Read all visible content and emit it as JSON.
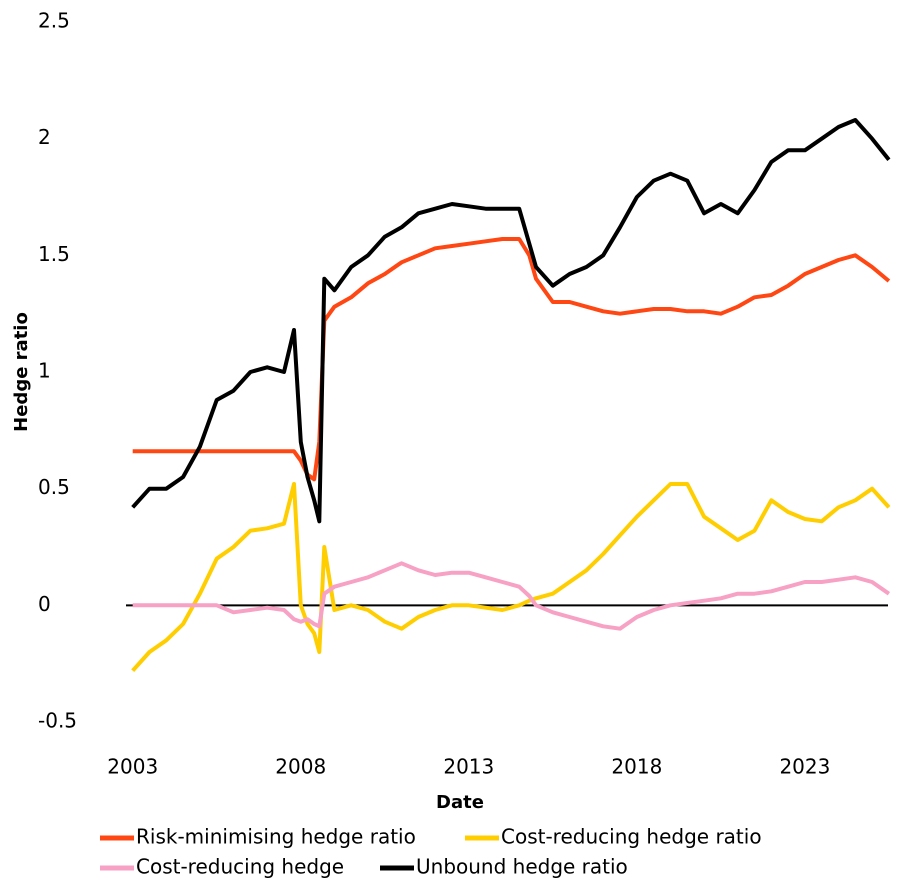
{
  "chart_data": {
    "type": "line",
    "x_label": "Date",
    "y_label": "Hedge ratio",
    "xlim": [
      2002.8,
      2025.8
    ],
    "xticks": [
      2003,
      2008,
      2013,
      2018,
      2023
    ],
    "ylim": [
      -0.5,
      2.5
    ],
    "yticks": [
      -0.5,
      0,
      0.5,
      1,
      1.5,
      2,
      2.5
    ],
    "grid": false,
    "legend": "bottom",
    "x": [
      2003.0,
      2003.5,
      2004.0,
      2004.5,
      2005.0,
      2005.5,
      2006.0,
      2006.5,
      2007.0,
      2007.5,
      2007.8,
      2008.0,
      2008.2,
      2008.4,
      2008.55,
      2008.7,
      2009.0,
      2009.5,
      2010.0,
      2010.5,
      2011.0,
      2011.5,
      2012.0,
      2012.5,
      2013.0,
      2013.5,
      2014.0,
      2014.5,
      2014.8,
      2015.0,
      2015.5,
      2016.0,
      2016.5,
      2017.0,
      2017.5,
      2018.0,
      2018.5,
      2019.0,
      2019.5,
      2020.0,
      2020.5,
      2021.0,
      2021.5,
      2022.0,
      2022.5,
      2023.0,
      2023.5,
      2024.0,
      2024.5,
      2025.0,
      2025.5
    ],
    "series": [
      {
        "name": "Risk-minimising hedge ratio",
        "color": "#ff4713",
        "values": [
          0.66,
          0.66,
          0.66,
          0.66,
          0.66,
          0.66,
          0.66,
          0.66,
          0.66,
          0.66,
          0.66,
          0.62,
          0.56,
          0.54,
          0.7,
          1.22,
          1.28,
          1.32,
          1.38,
          1.42,
          1.47,
          1.5,
          1.53,
          1.54,
          1.55,
          1.56,
          1.57,
          1.57,
          1.5,
          1.4,
          1.3,
          1.3,
          1.28,
          1.26,
          1.25,
          1.26,
          1.27,
          1.27,
          1.26,
          1.26,
          1.25,
          1.28,
          1.32,
          1.33,
          1.37,
          1.42,
          1.45,
          1.48,
          1.5,
          1.45,
          1.39
        ]
      },
      {
        "name": "Cost-reducing hedge ratio",
        "color": "#ffce00",
        "values": [
          -0.28,
          -0.2,
          -0.15,
          -0.08,
          0.05,
          0.2,
          0.25,
          0.32,
          0.33,
          0.35,
          0.52,
          0.0,
          -0.08,
          -0.12,
          -0.2,
          0.25,
          -0.02,
          0.0,
          -0.02,
          -0.07,
          -0.1,
          -0.05,
          -0.02,
          0.0,
          0.0,
          -0.01,
          -0.02,
          0.0,
          0.02,
          0.03,
          0.05,
          0.1,
          0.15,
          0.22,
          0.3,
          0.38,
          0.45,
          0.52,
          0.52,
          0.38,
          0.33,
          0.28,
          0.32,
          0.45,
          0.4,
          0.37,
          0.36,
          0.42,
          0.45,
          0.5,
          0.42
        ]
      },
      {
        "name": "Cost-reducing hedge",
        "color": "#f7a1c4",
        "values": [
          0,
          0,
          0,
          0,
          0,
          0,
          -0.03,
          -0.02,
          -0.01,
          -0.02,
          -0.06,
          -0.07,
          -0.06,
          -0.08,
          -0.09,
          0.05,
          0.08,
          0.1,
          0.12,
          0.15,
          0.18,
          0.15,
          0.13,
          0.14,
          0.14,
          0.12,
          0.1,
          0.08,
          0.04,
          0.0,
          -0.03,
          -0.05,
          -0.07,
          -0.09,
          -0.1,
          -0.05,
          -0.02,
          0.0,
          0.01,
          0.02,
          0.03,
          0.05,
          0.05,
          0.06,
          0.08,
          0.1,
          0.1,
          0.11,
          0.12,
          0.1,
          0.05
        ]
      },
      {
        "name": "Unbound hedge ratio",
        "color": "#000000",
        "values": [
          0.42,
          0.5,
          0.5,
          0.55,
          0.68,
          0.88,
          0.92,
          1.0,
          1.02,
          1.0,
          1.18,
          0.7,
          0.55,
          0.45,
          0.36,
          1.4,
          1.35,
          1.45,
          1.5,
          1.58,
          1.62,
          1.68,
          1.7,
          1.72,
          1.71,
          1.7,
          1.7,
          1.7,
          1.55,
          1.45,
          1.37,
          1.42,
          1.45,
          1.5,
          1.62,
          1.75,
          1.82,
          1.85,
          1.82,
          1.68,
          1.72,
          1.68,
          1.78,
          1.9,
          1.95,
          1.95,
          2.0,
          2.05,
          2.08,
          2.0,
          1.91
        ]
      }
    ]
  }
}
